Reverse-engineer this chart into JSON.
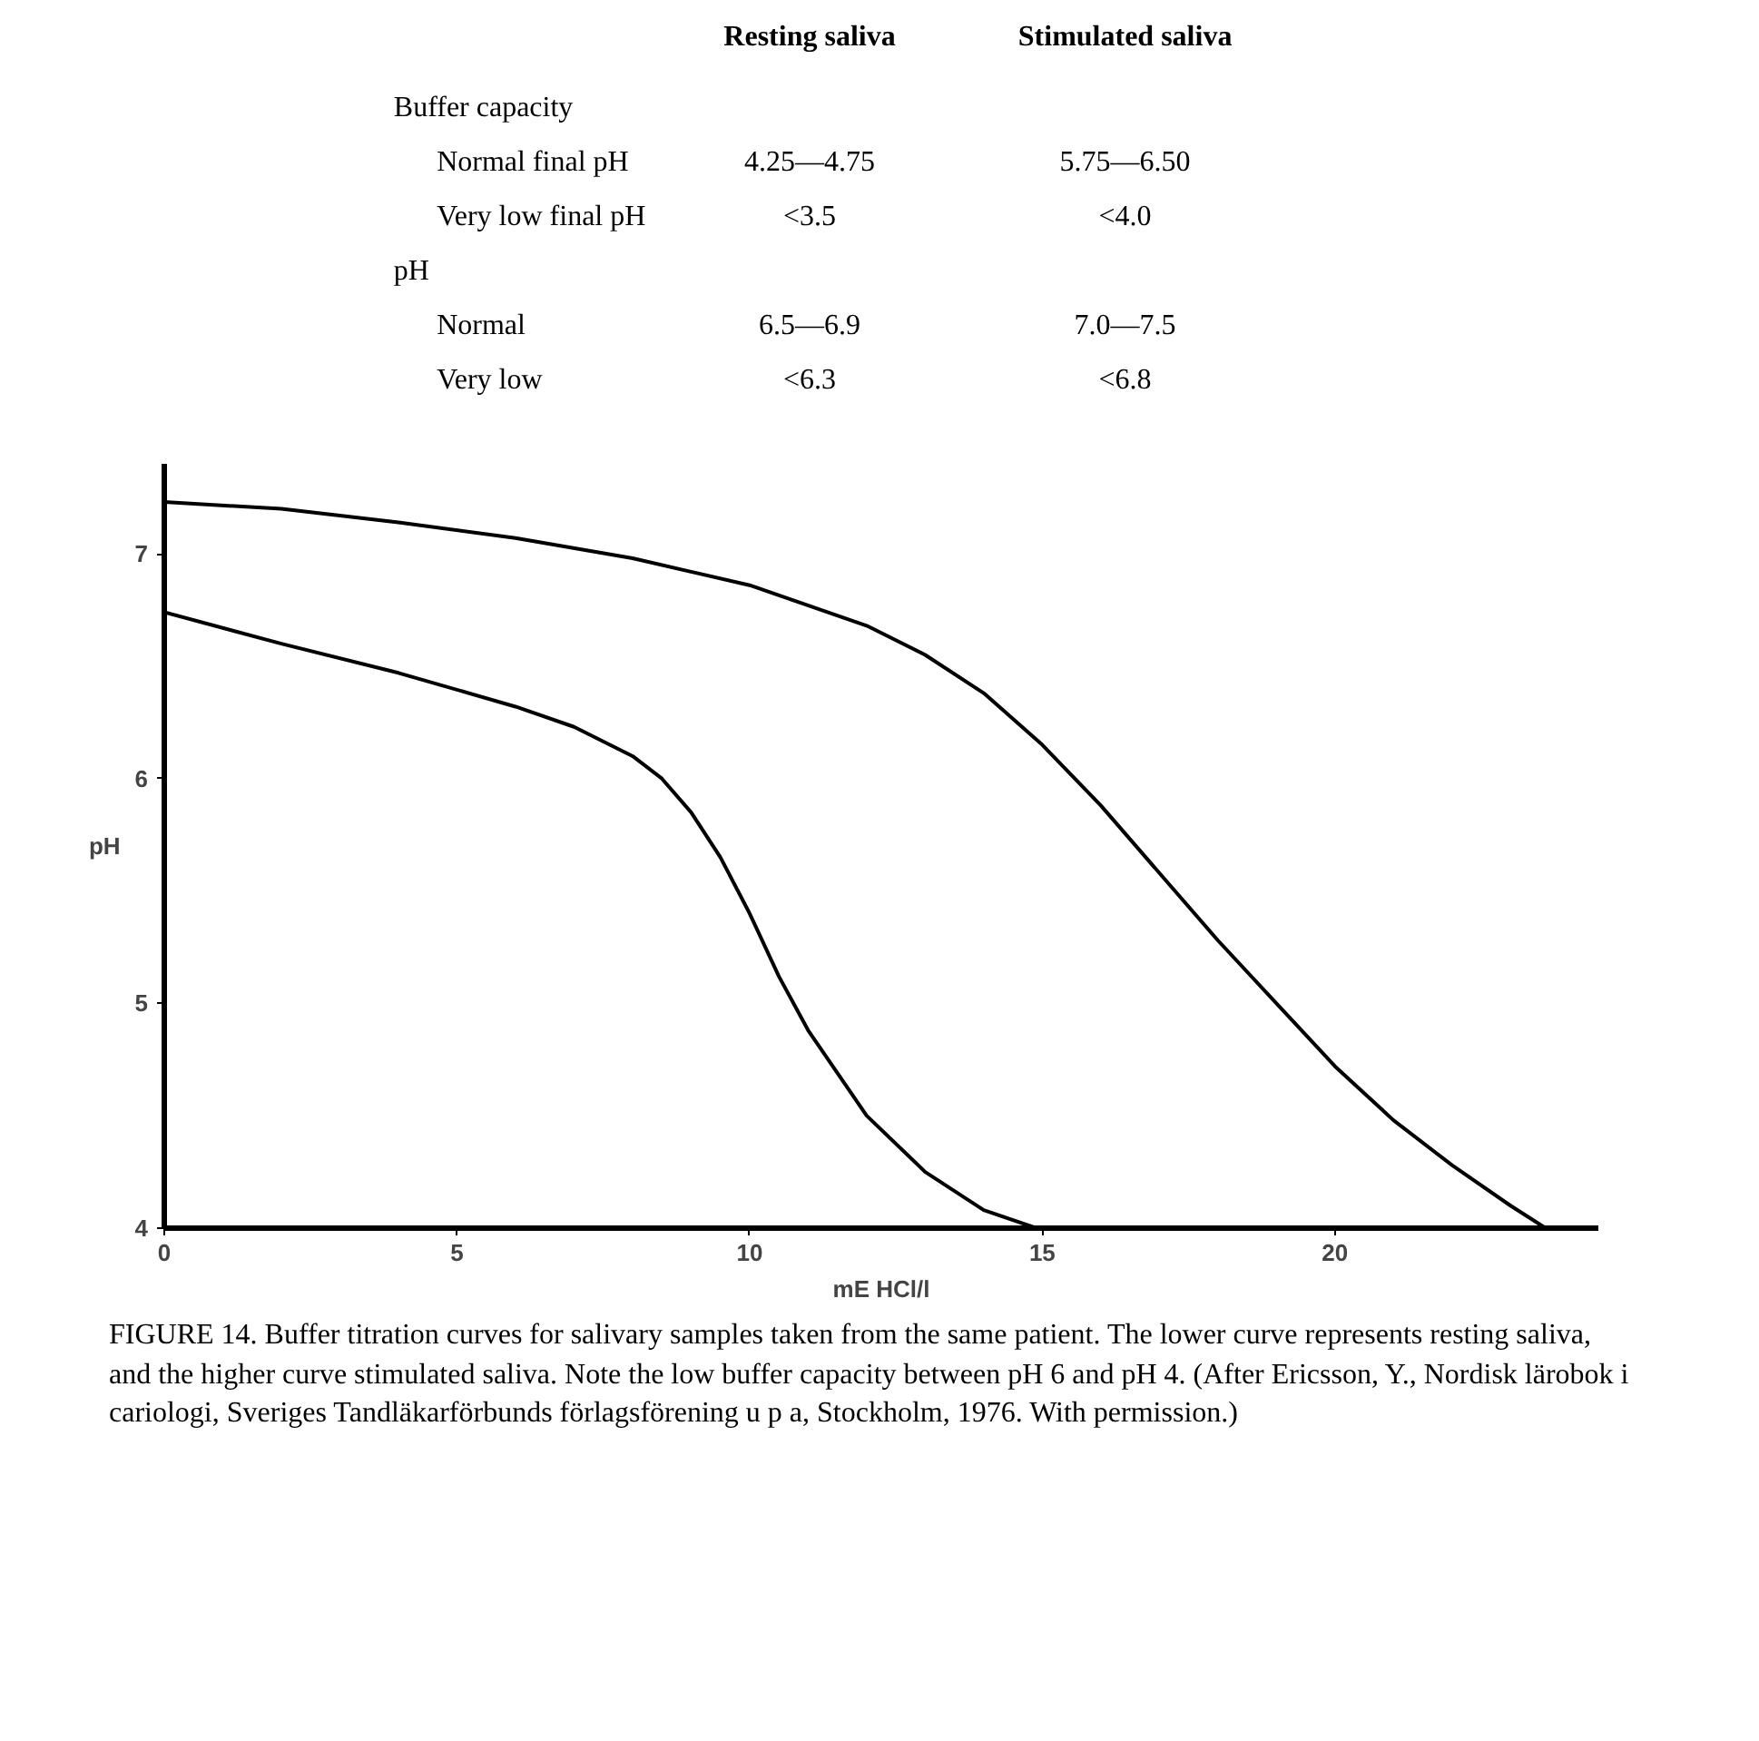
{
  "chart_data": [
    {
      "type": "other",
      "categories": [
        "Resting saliva",
        "Stimulated saliva"
      ],
      "y_categories": [
        "Buffer capacity",
        "Normal final pH",
        "Very low final pH",
        "pH",
        "Normal",
        "Very low"
      ],
      "cell_labels": [
        [
          null,
          null
        ],
        [
          "4.25—4.75",
          "5.75—6.50"
        ],
        [
          "<3.5",
          "<4.0"
        ],
        [
          null,
          null
        ],
        [
          "6.5—6.9",
          "7.0—7.5"
        ],
        [
          "<6.3",
          "<6.8"
        ]
      ]
    },
    {
      "type": "line",
      "xlabel": "mE HCl/l",
      "ylabel": "pH",
      "xlim": [
        0,
        24.5
      ],
      "ylim": [
        4,
        7.4
      ],
      "xticks": [
        0,
        5,
        10,
        15,
        20
      ],
      "yticks": [
        4,
        5,
        6,
        7
      ],
      "grid": false,
      "line_style": "solid",
      "series": [
        {
          "color": "#000000",
          "x": [
            0,
            2,
            4,
            6,
            7,
            8,
            8.5,
            9,
            9.5,
            10,
            10.5,
            11,
            12,
            13,
            14,
            14.9
          ],
          "values": [
            6.74,
            6.6,
            6.47,
            6.32,
            6.23,
            6.1,
            6.0,
            5.85,
            5.65,
            5.4,
            5.12,
            4.88,
            4.5,
            4.25,
            4.08,
            4.0
          ]
        },
        {
          "color": "#000000",
          "x": [
            0,
            2,
            4,
            6,
            8,
            10,
            12,
            13,
            14,
            15,
            16,
            17,
            18,
            19,
            20,
            21,
            22,
            23,
            23.6
          ],
          "values": [
            7.23,
            7.2,
            7.14,
            7.07,
            6.98,
            6.86,
            6.68,
            6.55,
            6.38,
            6.15,
            5.88,
            5.58,
            5.28,
            5.0,
            4.72,
            4.48,
            4.28,
            4.1,
            4.0
          ]
        }
      ],
      "annotations": [
        "FIGURE 14.    Buffer titration curves for salivary samples taken from the same patient. The lower curve represents resting saliva, and the higher curve stimulated saliva. Note the low buffer capacity between pH 6 and pH 4. (After Ericsson, Y., Nordisk lärobok i cariologi, Sveriges Tandläkarförbunds förlagsförening u p a, Stockholm, 1976. With permission.)"
      ]
    }
  ]
}
